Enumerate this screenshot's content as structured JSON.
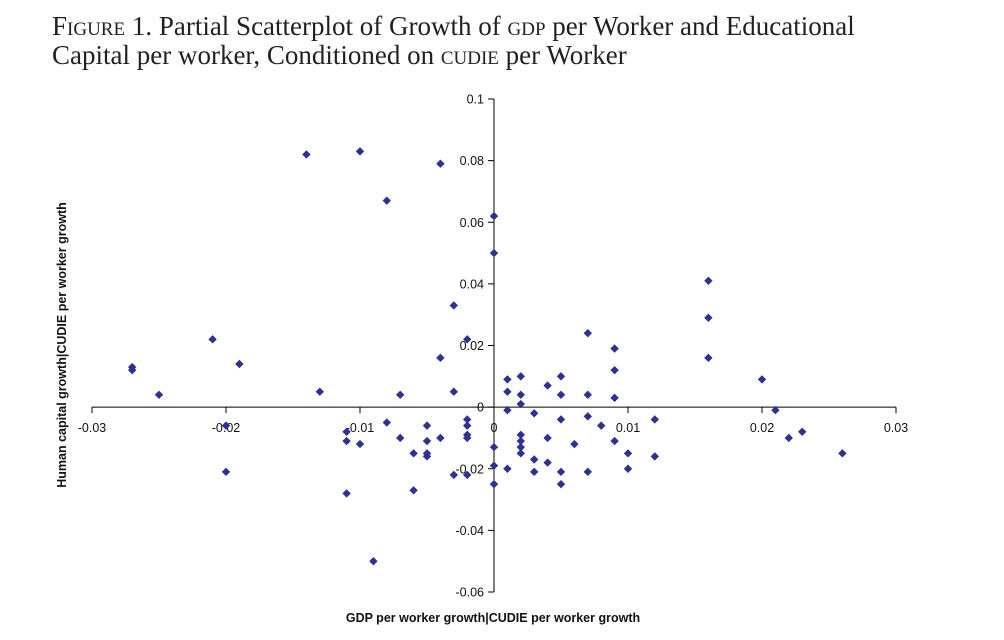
{
  "title": {
    "figure_word": "Figure 1.",
    "line1_pre": "Partial Scatterplot of Growth of",
    "gdp": "gdp",
    "line1_post": "per Worker and Educational",
    "line2_pre": "Capital per worker, Conditioned on",
    "cudie": "cudie",
    "line2_post": "per Worker"
  },
  "colors": {
    "marker": "#2e3192",
    "axis": "#000000"
  },
  "chart_data": {
    "type": "scatter",
    "title": "Partial Scatterplot of Growth of GDP per Worker and Educational Capital per worker, Conditioned on CUDIE per Worker",
    "xlabel": "GDP per worker growth|CUDIE per worker growth",
    "ylabel": "Human capital growth|CUDIE per worker growth",
    "xlim": [
      -0.03,
      0.03
    ],
    "ylim": [
      -0.06,
      0.1
    ],
    "xticks": [
      -0.03,
      -0.02,
      -0.01,
      0,
      0.01,
      0.02,
      0.03
    ],
    "xtick_labels": [
      "-0.03",
      "-0.02",
      "-0.01",
      "0",
      "0.01",
      "0.02",
      "0.03"
    ],
    "yticks": [
      -0.06,
      -0.04,
      -0.02,
      0,
      0.02,
      0.04,
      0.06,
      0.08,
      0.1
    ],
    "ytick_labels": [
      "-0.06",
      "-0.04",
      "-0.02",
      "0",
      "0.02",
      "0.04",
      "0.06",
      "0.08",
      "0.1"
    ],
    "grid": false,
    "legend": false,
    "marker": "diamond",
    "points": [
      [
        -0.027,
        0.013
      ],
      [
        -0.027,
        0.012
      ],
      [
        -0.025,
        0.004
      ],
      [
        -0.021,
        0.022
      ],
      [
        -0.019,
        0.014
      ],
      [
        -0.02,
        -0.006
      ],
      [
        -0.02,
        -0.021
      ],
      [
        -0.014,
        0.082
      ],
      [
        -0.013,
        0.005
      ],
      [
        -0.01,
        0.083
      ],
      [
        -0.011,
        -0.008
      ],
      [
        -0.011,
        -0.011
      ],
      [
        -0.01,
        -0.012
      ],
      [
        -0.011,
        -0.028
      ],
      [
        -0.008,
        0.067
      ],
      [
        -0.008,
        -0.005
      ],
      [
        -0.007,
        0.004
      ],
      [
        -0.007,
        -0.01
      ],
      [
        -0.009,
        -0.05
      ],
      [
        -0.006,
        -0.015
      ],
      [
        -0.006,
        -0.027
      ],
      [
        -0.005,
        -0.006
      ],
      [
        -0.005,
        -0.011
      ],
      [
        -0.005,
        -0.015
      ],
      [
        -0.005,
        -0.016
      ],
      [
        -0.004,
        0.079
      ],
      [
        -0.004,
        0.016
      ],
      [
        -0.004,
        -0.01
      ],
      [
        -0.003,
        0.033
      ],
      [
        -0.003,
        0.005
      ],
      [
        -0.003,
        -0.022
      ],
      [
        -0.002,
        0.022
      ],
      [
        -0.002,
        -0.004
      ],
      [
        -0.002,
        -0.006
      ],
      [
        -0.002,
        -0.009
      ],
      [
        -0.002,
        -0.01
      ],
      [
        -0.002,
        -0.022
      ],
      [
        0,
        0.062
      ],
      [
        0,
        0.05
      ],
      [
        0,
        -0.013
      ],
      [
        0,
        -0.019
      ],
      [
        0,
        -0.025
      ],
      [
        0.001,
        0.009
      ],
      [
        0.001,
        0.005
      ],
      [
        0.001,
        -0.001
      ],
      [
        0.001,
        -0.02
      ],
      [
        0.002,
        0.01
      ],
      [
        0.002,
        0.004
      ],
      [
        0.002,
        0.001
      ],
      [
        0.002,
        -0.009
      ],
      [
        0.002,
        -0.011
      ],
      [
        0.002,
        -0.013
      ],
      [
        0.002,
        -0.015
      ],
      [
        0.003,
        -0.002
      ],
      [
        0.003,
        -0.017
      ],
      [
        0.003,
        -0.021
      ],
      [
        0.004,
        0.007
      ],
      [
        0.004,
        -0.01
      ],
      [
        0.004,
        -0.018
      ],
      [
        0.005,
        0.01
      ],
      [
        0.005,
        0.004
      ],
      [
        0.005,
        -0.004
      ],
      [
        0.005,
        -0.021
      ],
      [
        0.005,
        -0.025
      ],
      [
        0.006,
        -0.012
      ],
      [
        0.007,
        0.024
      ],
      [
        0.007,
        0.004
      ],
      [
        0.007,
        -0.003
      ],
      [
        0.007,
        -0.021
      ],
      [
        0.008,
        -0.006
      ],
      [
        0.009,
        0.019
      ],
      [
        0.009,
        0.012
      ],
      [
        0.009,
        0.003
      ],
      [
        0.009,
        -0.011
      ],
      [
        0.01,
        -0.015
      ],
      [
        0.01,
        -0.02
      ],
      [
        0.012,
        -0.004
      ],
      [
        0.012,
        -0.016
      ],
      [
        0.016,
        0.041
      ],
      [
        0.016,
        0.029
      ],
      [
        0.016,
        0.016
      ],
      [
        0.02,
        0.009
      ],
      [
        0.021,
        -0.001
      ],
      [
        0.022,
        -0.01
      ],
      [
        0.023,
        -0.008
      ],
      [
        0.026,
        -0.015
      ]
    ]
  }
}
